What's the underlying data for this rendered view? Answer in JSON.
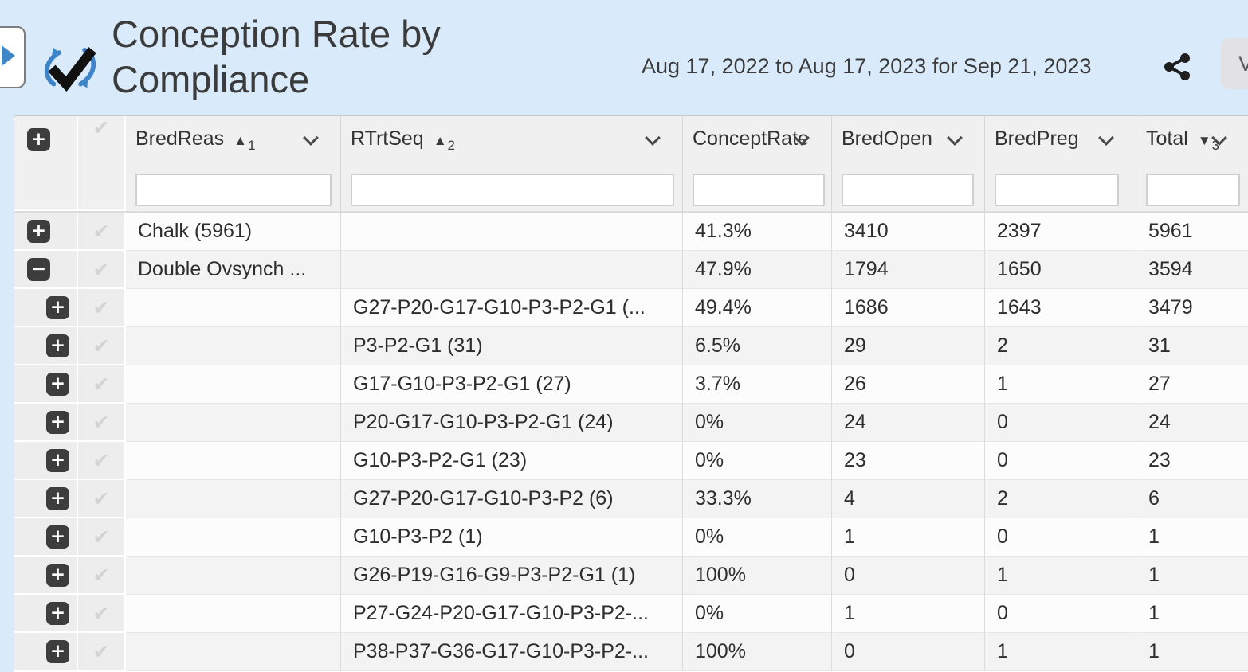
{
  "header": {
    "title": "Conception Rate by Compliance",
    "date_range": "Aug 17, 2022 to Aug 17, 2023 for Sep 21, 2023",
    "view_button_label": "V",
    "icons": {
      "nav_toggle": "blue-play-triangle",
      "logo": "checkmark-cycle-arrows",
      "share": "share-nodes"
    },
    "colors": {
      "header_bg": "#d9eafb",
      "accent_blue": "#4186c6",
      "button_dark": "#3d3d3d"
    }
  },
  "table": {
    "columns": [
      {
        "id": "expand",
        "type": "expand_all",
        "label": ""
      },
      {
        "id": "select",
        "type": "select_all",
        "label": ""
      },
      {
        "id": "bredreas",
        "type": "data",
        "label": "BredReas",
        "sort_dir": "asc",
        "sort_order": "1",
        "has_menu": true,
        "has_filter": true,
        "filter_value": "",
        "filter_width": 230
      },
      {
        "id": "rtrtseq",
        "type": "data",
        "label": "RTrtSeq",
        "sort_dir": "asc",
        "sort_order": "2",
        "has_menu": true,
        "has_filter": true,
        "filter_value": "",
        "filter_width": 390
      },
      {
        "id": "conceptrate",
        "type": "data",
        "label": "ConceptRate",
        "sort_dir": "",
        "sort_order": "",
        "has_menu": true,
        "has_filter": true,
        "filter_value": "",
        "filter_width": 150
      },
      {
        "id": "bredopen",
        "type": "data",
        "label": "BredOpen",
        "sort_dir": "",
        "sort_order": "",
        "has_menu": true,
        "has_filter": true,
        "filter_value": "",
        "filter_width": 150
      },
      {
        "id": "bredpreg",
        "type": "data",
        "label": "BredPreg",
        "sort_dir": "",
        "sort_order": "",
        "has_menu": true,
        "has_filter": true,
        "filter_value": "",
        "filter_width": 140
      },
      {
        "id": "total",
        "type": "data",
        "label": "Total",
        "sort_dir": "desc",
        "sort_order": "3",
        "has_menu": true,
        "has_filter": true,
        "filter_value": "",
        "filter_width": 102
      }
    ],
    "rows": [
      {
        "level": 0,
        "expand": "plus",
        "bredreas": "Chalk (5961)",
        "rtrtseq": "",
        "conceptrate": "41.3%",
        "bredopen": "3410",
        "bredpreg": "2397",
        "total": "5961"
      },
      {
        "level": 0,
        "expand": "minus",
        "bredreas": "Double Ovsynch ...",
        "rtrtseq": "",
        "conceptrate": "47.9%",
        "bredopen": "1794",
        "bredpreg": "1650",
        "total": "3594"
      },
      {
        "level": 1,
        "expand": "plus",
        "bredreas": "",
        "rtrtseq": "G27-P20-G17-G10-P3-P2-G1 (...",
        "conceptrate": "49.4%",
        "bredopen": "1686",
        "bredpreg": "1643",
        "total": "3479"
      },
      {
        "level": 1,
        "expand": "plus",
        "bredreas": "",
        "rtrtseq": "P3-P2-G1 (31)",
        "conceptrate": "6.5%",
        "bredopen": "29",
        "bredpreg": "2",
        "total": "31"
      },
      {
        "level": 1,
        "expand": "plus",
        "bredreas": "",
        "rtrtseq": "G17-G10-P3-P2-G1 (27)",
        "conceptrate": "3.7%",
        "bredopen": "26",
        "bredpreg": "1",
        "total": "27"
      },
      {
        "level": 1,
        "expand": "plus",
        "bredreas": "",
        "rtrtseq": "P20-G17-G10-P3-P2-G1 (24)",
        "conceptrate": "0%",
        "bredopen": "24",
        "bredpreg": "0",
        "total": "24"
      },
      {
        "level": 1,
        "expand": "plus",
        "bredreas": "",
        "rtrtseq": "G10-P3-P2-G1 (23)",
        "conceptrate": "0%",
        "bredopen": "23",
        "bredpreg": "0",
        "total": "23"
      },
      {
        "level": 1,
        "expand": "plus",
        "bredreas": "",
        "rtrtseq": "G27-P20-G17-G10-P3-P2 (6)",
        "conceptrate": "33.3%",
        "bredopen": "4",
        "bredpreg": "2",
        "total": "6"
      },
      {
        "level": 1,
        "expand": "plus",
        "bredreas": "",
        "rtrtseq": "G10-P3-P2 (1)",
        "conceptrate": "0%",
        "bredopen": "1",
        "bredpreg": "0",
        "total": "1"
      },
      {
        "level": 1,
        "expand": "plus",
        "bredreas": "",
        "rtrtseq": "G26-P19-G16-G9-P3-P2-G1 (1)",
        "conceptrate": "100%",
        "bredopen": "0",
        "bredpreg": "1",
        "total": "1"
      },
      {
        "level": 1,
        "expand": "plus",
        "bredreas": "",
        "rtrtseq": "P27-G24-P20-G17-G10-P3-P2-...",
        "conceptrate": "0%",
        "bredopen": "1",
        "bredpreg": "0",
        "total": "1"
      },
      {
        "level": 1,
        "expand": "plus",
        "bredreas": "",
        "rtrtseq": "P38-P37-G36-G17-G10-P3-P2-...",
        "conceptrate": "100%",
        "bredopen": "0",
        "bredpreg": "1",
        "total": "1"
      }
    ]
  }
}
